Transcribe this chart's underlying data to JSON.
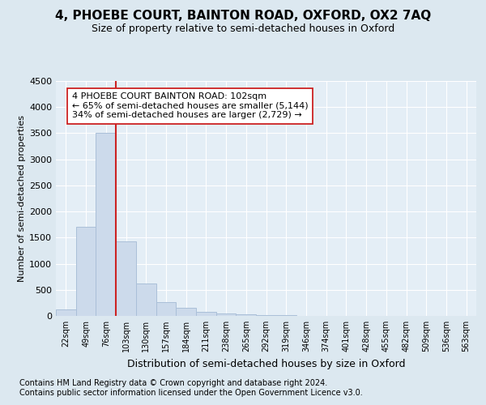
{
  "title": "4, PHOEBE COURT, BAINTON ROAD, OXFORD, OX2 7AQ",
  "subtitle": "Size of property relative to semi-detached houses in Oxford",
  "xlabel": "Distribution of semi-detached houses by size in Oxford",
  "ylabel": "Number of semi-detached properties",
  "categories": [
    "22sqm",
    "49sqm",
    "76sqm",
    "103sqm",
    "130sqm",
    "157sqm",
    "184sqm",
    "211sqm",
    "238sqm",
    "265sqm",
    "292sqm",
    "319sqm",
    "346sqm",
    "374sqm",
    "401sqm",
    "428sqm",
    "455sqm",
    "482sqm",
    "509sqm",
    "536sqm",
    "563sqm"
  ],
  "values": [
    130,
    1700,
    3500,
    1430,
    620,
    270,
    155,
    80,
    50,
    30,
    10,
    8,
    5,
    5,
    0,
    0,
    0,
    0,
    0,
    0,
    0
  ],
  "bar_color": "#ccdaeb",
  "bar_edge_color": "#aabfd8",
  "vline_color": "#cc2222",
  "annotation_text": "4 PHOEBE COURT BAINTON ROAD: 102sqm\n← 65% of semi-detached houses are smaller (5,144)\n34% of semi-detached houses are larger (2,729) →",
  "annotation_box_facecolor": "#ffffff",
  "annotation_box_edgecolor": "#cc2222",
  "ylim": [
    0,
    4500
  ],
  "yticks": [
    0,
    500,
    1000,
    1500,
    2000,
    2500,
    3000,
    3500,
    4000,
    4500
  ],
  "footer1": "Contains HM Land Registry data © Crown copyright and database right 2024.",
  "footer2": "Contains public sector information licensed under the Open Government Licence v3.0.",
  "bg_color": "#dce8f0",
  "plot_bg_color": "#e4eef6",
  "grid_color": "#ffffff",
  "title_fontsize": 11,
  "subtitle_fontsize": 9,
  "xlabel_fontsize": 9,
  "ylabel_fontsize": 8,
  "tick_fontsize": 8,
  "annot_fontsize": 8,
  "footer_fontsize": 7
}
